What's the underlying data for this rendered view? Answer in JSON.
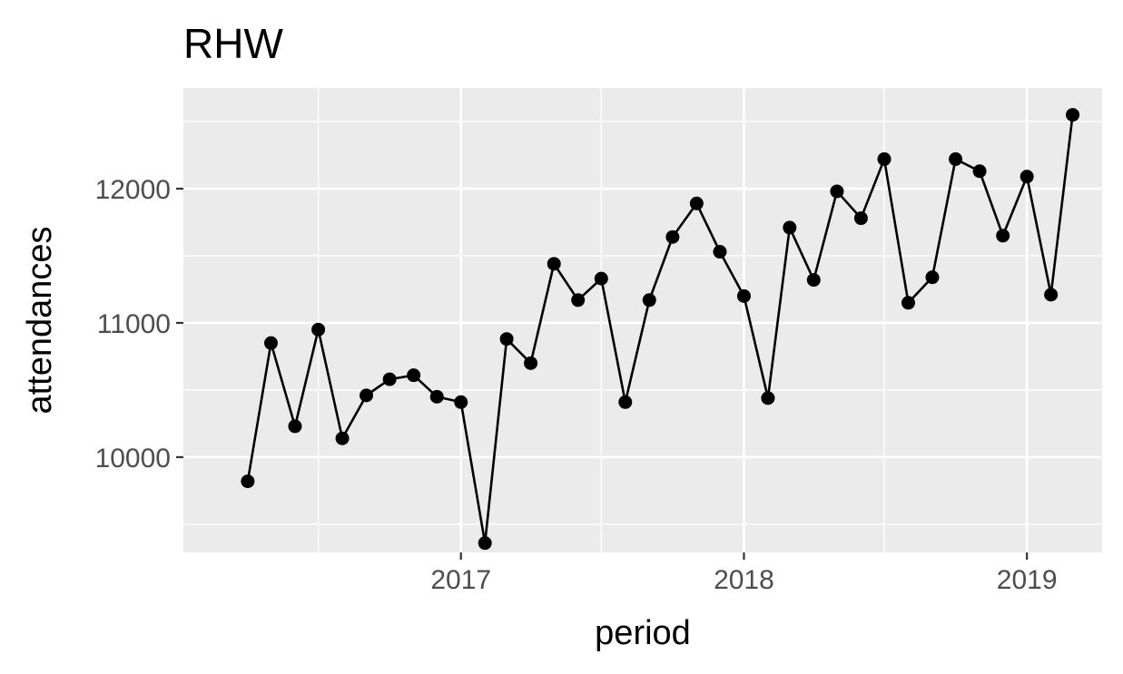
{
  "chart_data": {
    "type": "line",
    "title": "RHW",
    "xlabel": "period",
    "ylabel": "attendances",
    "x_ticks": [
      "2017",
      "2018",
      "2019"
    ],
    "y_ticks": [
      "10000",
      "11000",
      "12000"
    ],
    "xlim": [
      "2016-01-09",
      "2019-04-08"
    ],
    "ylim": [
      9290,
      12750
    ],
    "grid": true,
    "legend": "none",
    "colors": {
      "panel": "#ebebeb",
      "grid": "#ffffff",
      "line": "#000000",
      "point": "#000000",
      "tick_label": "#4d4d4d"
    },
    "series": [
      {
        "x": [
          "2016-04-01",
          "2016-05-01",
          "2016-06-01",
          "2016-07-01",
          "2016-08-01",
          "2016-09-01",
          "2016-10-01",
          "2016-11-01",
          "2016-12-01",
          "2017-01-01",
          "2017-02-01",
          "2017-03-01",
          "2017-04-01",
          "2017-05-01",
          "2017-06-01",
          "2017-07-01",
          "2017-08-01",
          "2017-09-01",
          "2017-10-01",
          "2017-11-01",
          "2017-12-01",
          "2018-01-01",
          "2018-02-01",
          "2018-03-01",
          "2018-04-01",
          "2018-05-01",
          "2018-06-01",
          "2018-07-01",
          "2018-08-01",
          "2018-09-01",
          "2018-10-01",
          "2018-11-01",
          "2018-12-01",
          "2019-01-01",
          "2019-02-01",
          "2019-03-01"
        ],
        "values": [
          9820,
          10850,
          10230,
          10950,
          10140,
          10460,
          10580,
          10610,
          10450,
          10410,
          9360,
          10880,
          10700,
          11440,
          11170,
          11330,
          10410,
          11170,
          11640,
          11890,
          11530,
          11200,
          10440,
          11710,
          11320,
          11980,
          11780,
          12220,
          11150,
          11340,
          12220,
          12130,
          11650,
          12090,
          11210,
          12550
        ]
      }
    ]
  }
}
